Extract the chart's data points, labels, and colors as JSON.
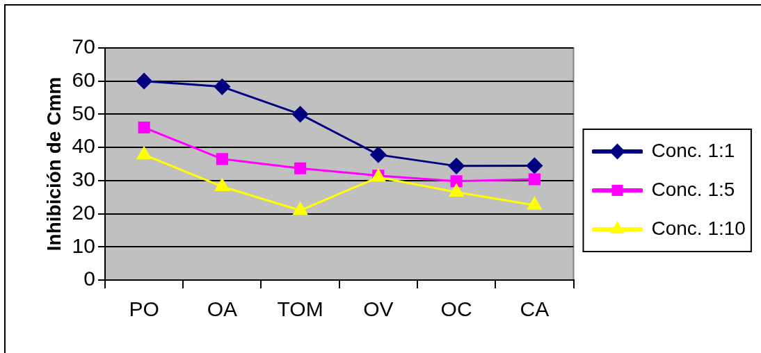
{
  "chart_data": {
    "type": "line",
    "ylabel": "Inhibición de Cmm",
    "categories": [
      "PO",
      "OA",
      "TOM",
      "OV",
      "OC",
      "CA"
    ],
    "series": [
      {
        "name": "Conc. 1:1",
        "color": "#000080",
        "marker": "diamond",
        "values": [
          60,
          58.3,
          50,
          37.8,
          34.4,
          34.5
        ]
      },
      {
        "name": "Conc. 1:5",
        "color": "#ff00ff",
        "marker": "square",
        "values": [
          46,
          36.5,
          33.7,
          31.5,
          29.8,
          30.4
        ]
      },
      {
        "name": "Conc. 1:10",
        "color": "#ffff00",
        "marker": "triangle",
        "values": [
          37.8,
          28.2,
          21,
          31,
          26.5,
          22.6
        ]
      }
    ],
    "ylim": [
      0,
      70
    ],
    "yticks": [
      0,
      10,
      20,
      30,
      40,
      50,
      60,
      70
    ],
    "grid": "y",
    "legend": "right"
  }
}
